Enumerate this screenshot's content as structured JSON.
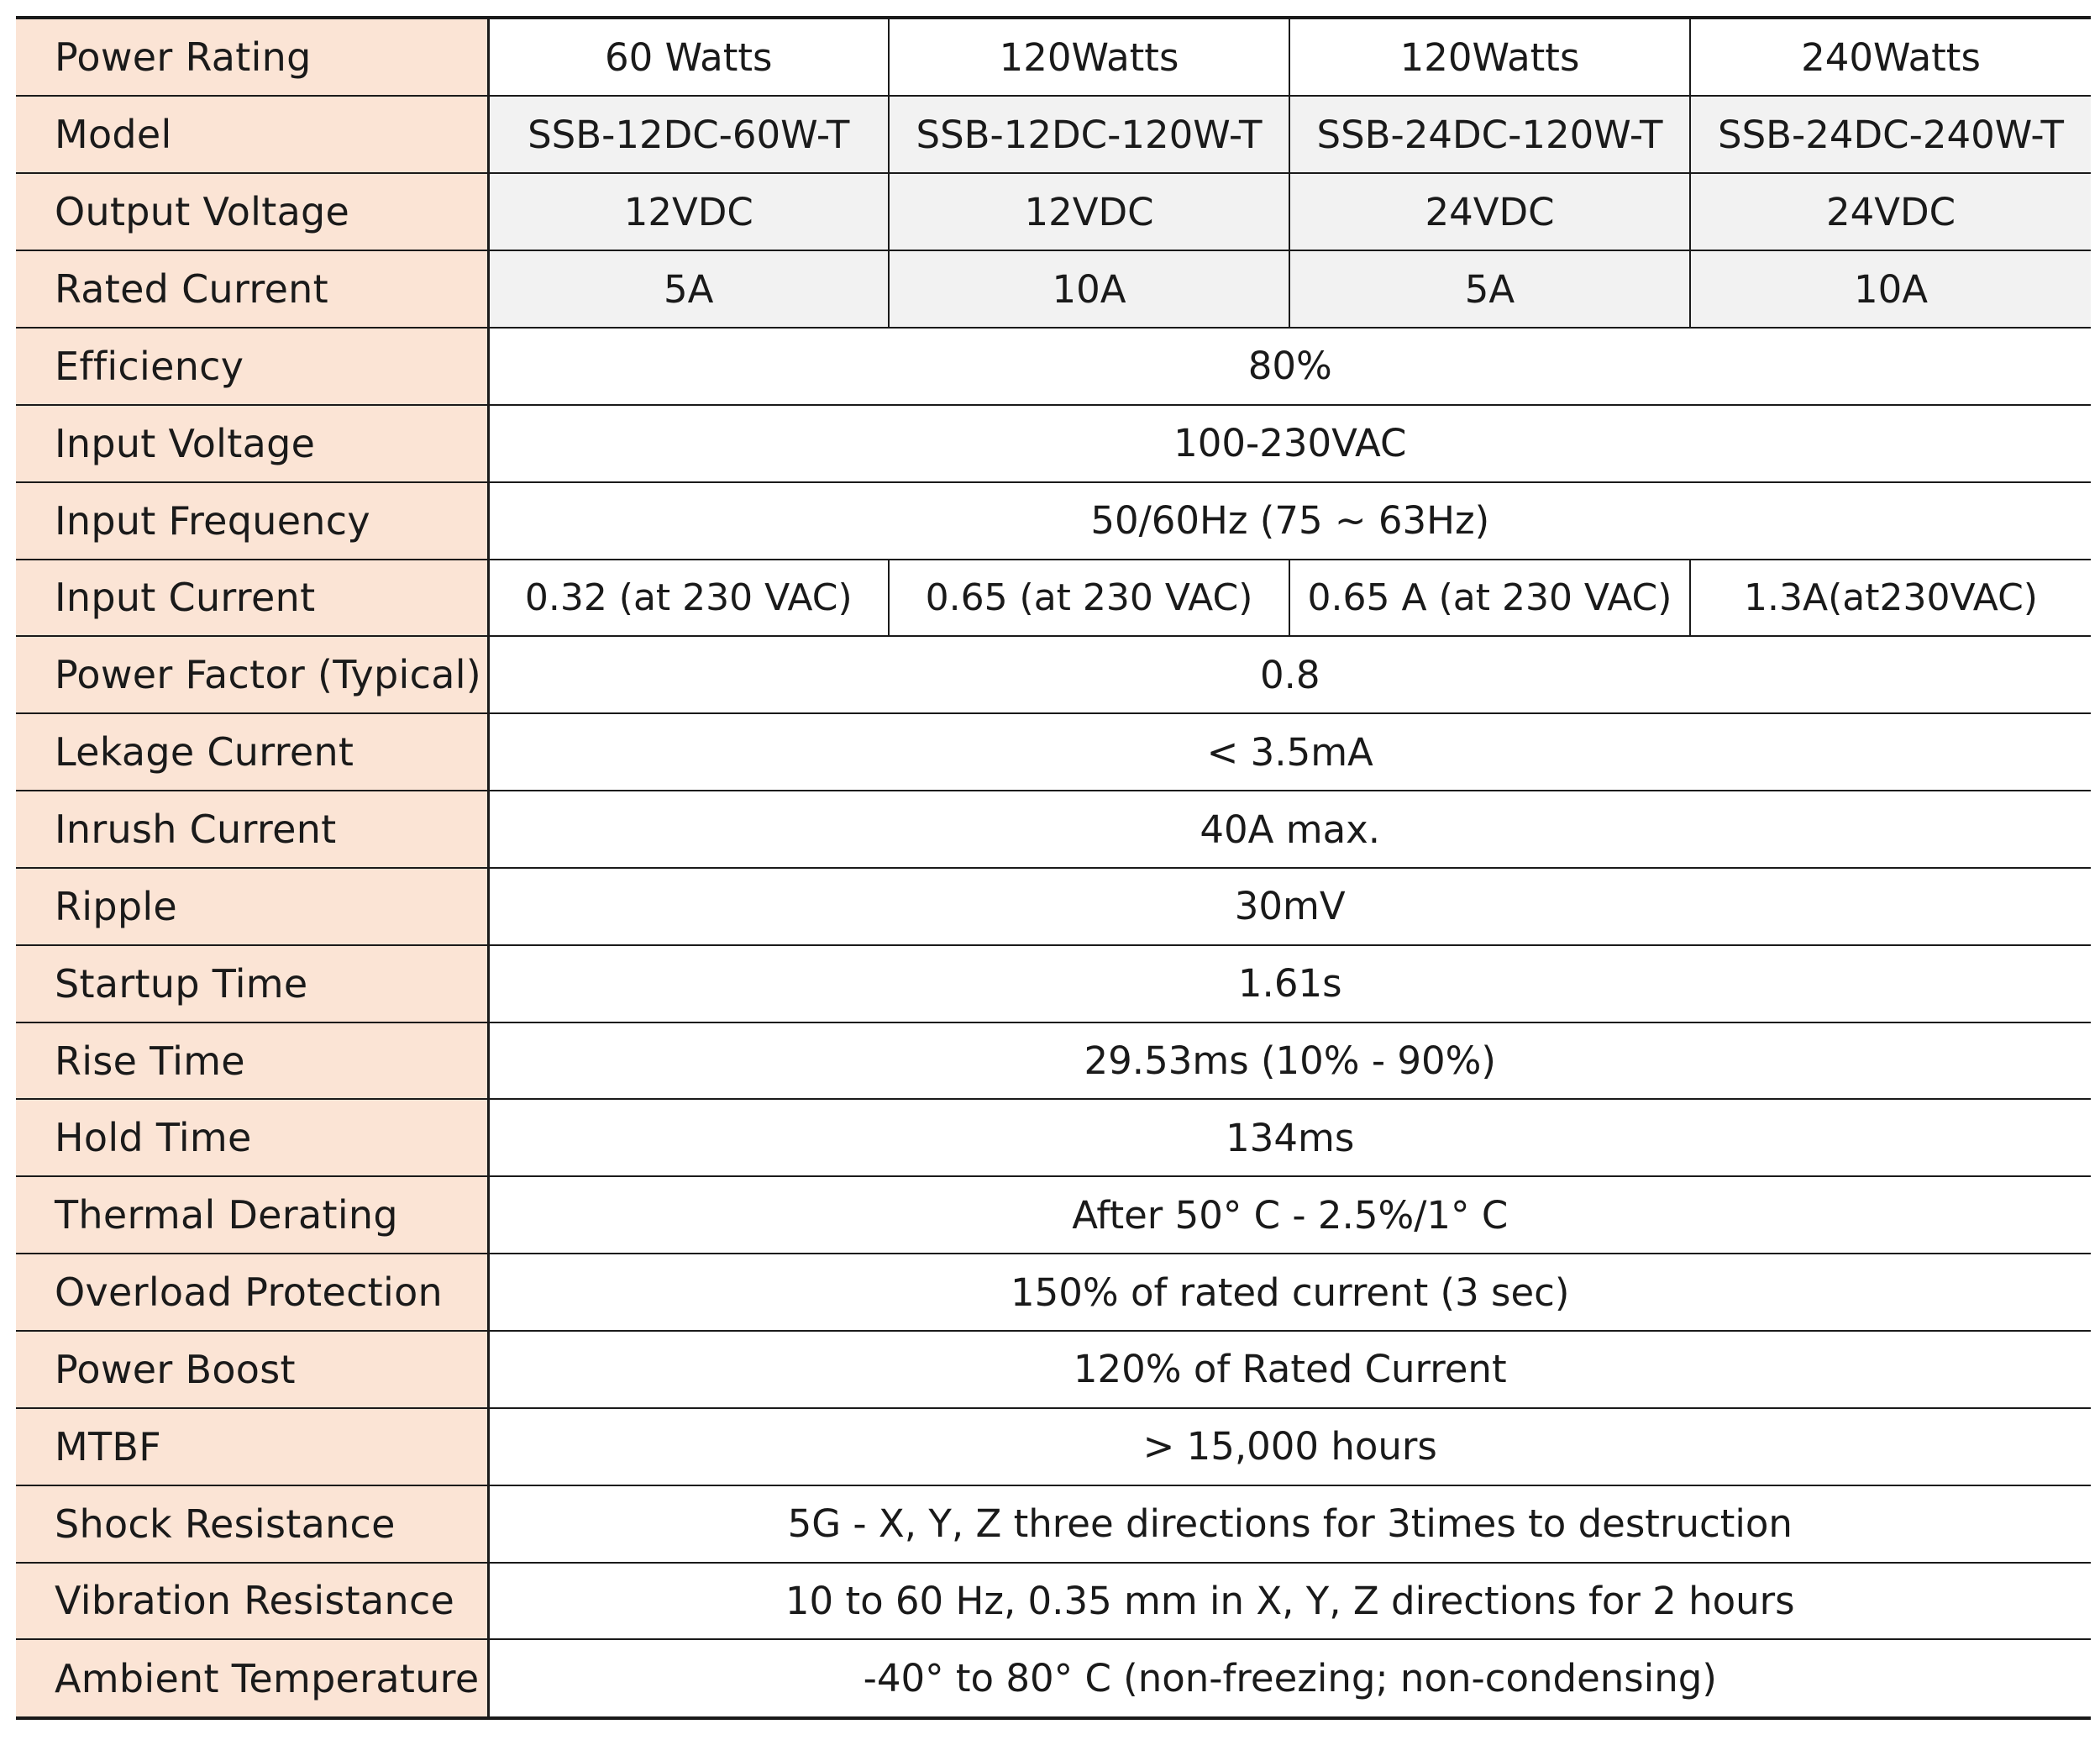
{
  "header": {
    "label": "Power Rating",
    "values": [
      "60 Watts",
      "120Watts",
      "120Watts",
      "240Watts"
    ]
  },
  "rows_split": [
    {
      "label": "Model",
      "values": [
        "SSB-12DC-60W-T",
        "SSB-12DC-120W-T",
        "SSB-24DC-120W-T",
        "SSB-24DC-240W-T"
      ]
    },
    {
      "label": "Output Voltage",
      "values": [
        "12VDC",
        "12VDC",
        "24VDC",
        "24VDC"
      ]
    },
    {
      "label": "Rated Current",
      "values": [
        "5A",
        "10A",
        "5A",
        "10A"
      ]
    }
  ],
  "efficiency": {
    "label": "Efficiency",
    "value": "80%"
  },
  "input_voltage": {
    "label": "Input Voltage",
    "value": "100-230VAC"
  },
  "input_frequency": {
    "label": "Input Frequency",
    "value": "50/60Hz (75 ~ 63Hz)"
  },
  "input_current": {
    "label": "Input Current",
    "values": [
      "0.32 (at 230 VAC)",
      "0.65 (at 230 VAC)",
      "0.65 A (at 230 VAC)",
      "1.3A(at230VAC)"
    ]
  },
  "rows_merged": [
    {
      "label": "Power Factor (Typical)",
      "value": "0.8"
    },
    {
      "label": "Lekage Current",
      "value": "< 3.5mA"
    },
    {
      "label": "Inrush Current",
      "value": "40A max."
    },
    {
      "label": "Ripple",
      "value": "30mV"
    },
    {
      "label": "Startup Time",
      "value": "1.61s"
    },
    {
      "label": "Rise Time",
      "value": "29.53ms (10% - 90%)"
    },
    {
      "label": "Hold Time",
      "value": "134ms"
    },
    {
      "label": "Thermal Derating",
      "value": "After 50° C - 2.5%/1° C"
    },
    {
      "label": "Overload Protection",
      "value": "150% of rated current (3 sec)"
    },
    {
      "label": "Power Boost",
      "value": "120% of Rated Current"
    },
    {
      "label": "MTBF",
      "value": "> 15,000 hours"
    },
    {
      "label": "Shock Resistance",
      "value": "5G - X, Y, Z three directions for 3times to destruction"
    },
    {
      "label": "Vibration Resistance",
      "value": "10 to 60 Hz, 0.35 mm in X, Y, Z directions for 2 hours"
    },
    {
      "label": "Ambient Temperature",
      "value": "-40° to 80° C (non-freezing; non-condensing)"
    }
  ],
  "colors": {
    "label_fill": "#fbe4d5",
    "shaded_fill": "#f2f2f2",
    "border": "#1a1a1a"
  }
}
